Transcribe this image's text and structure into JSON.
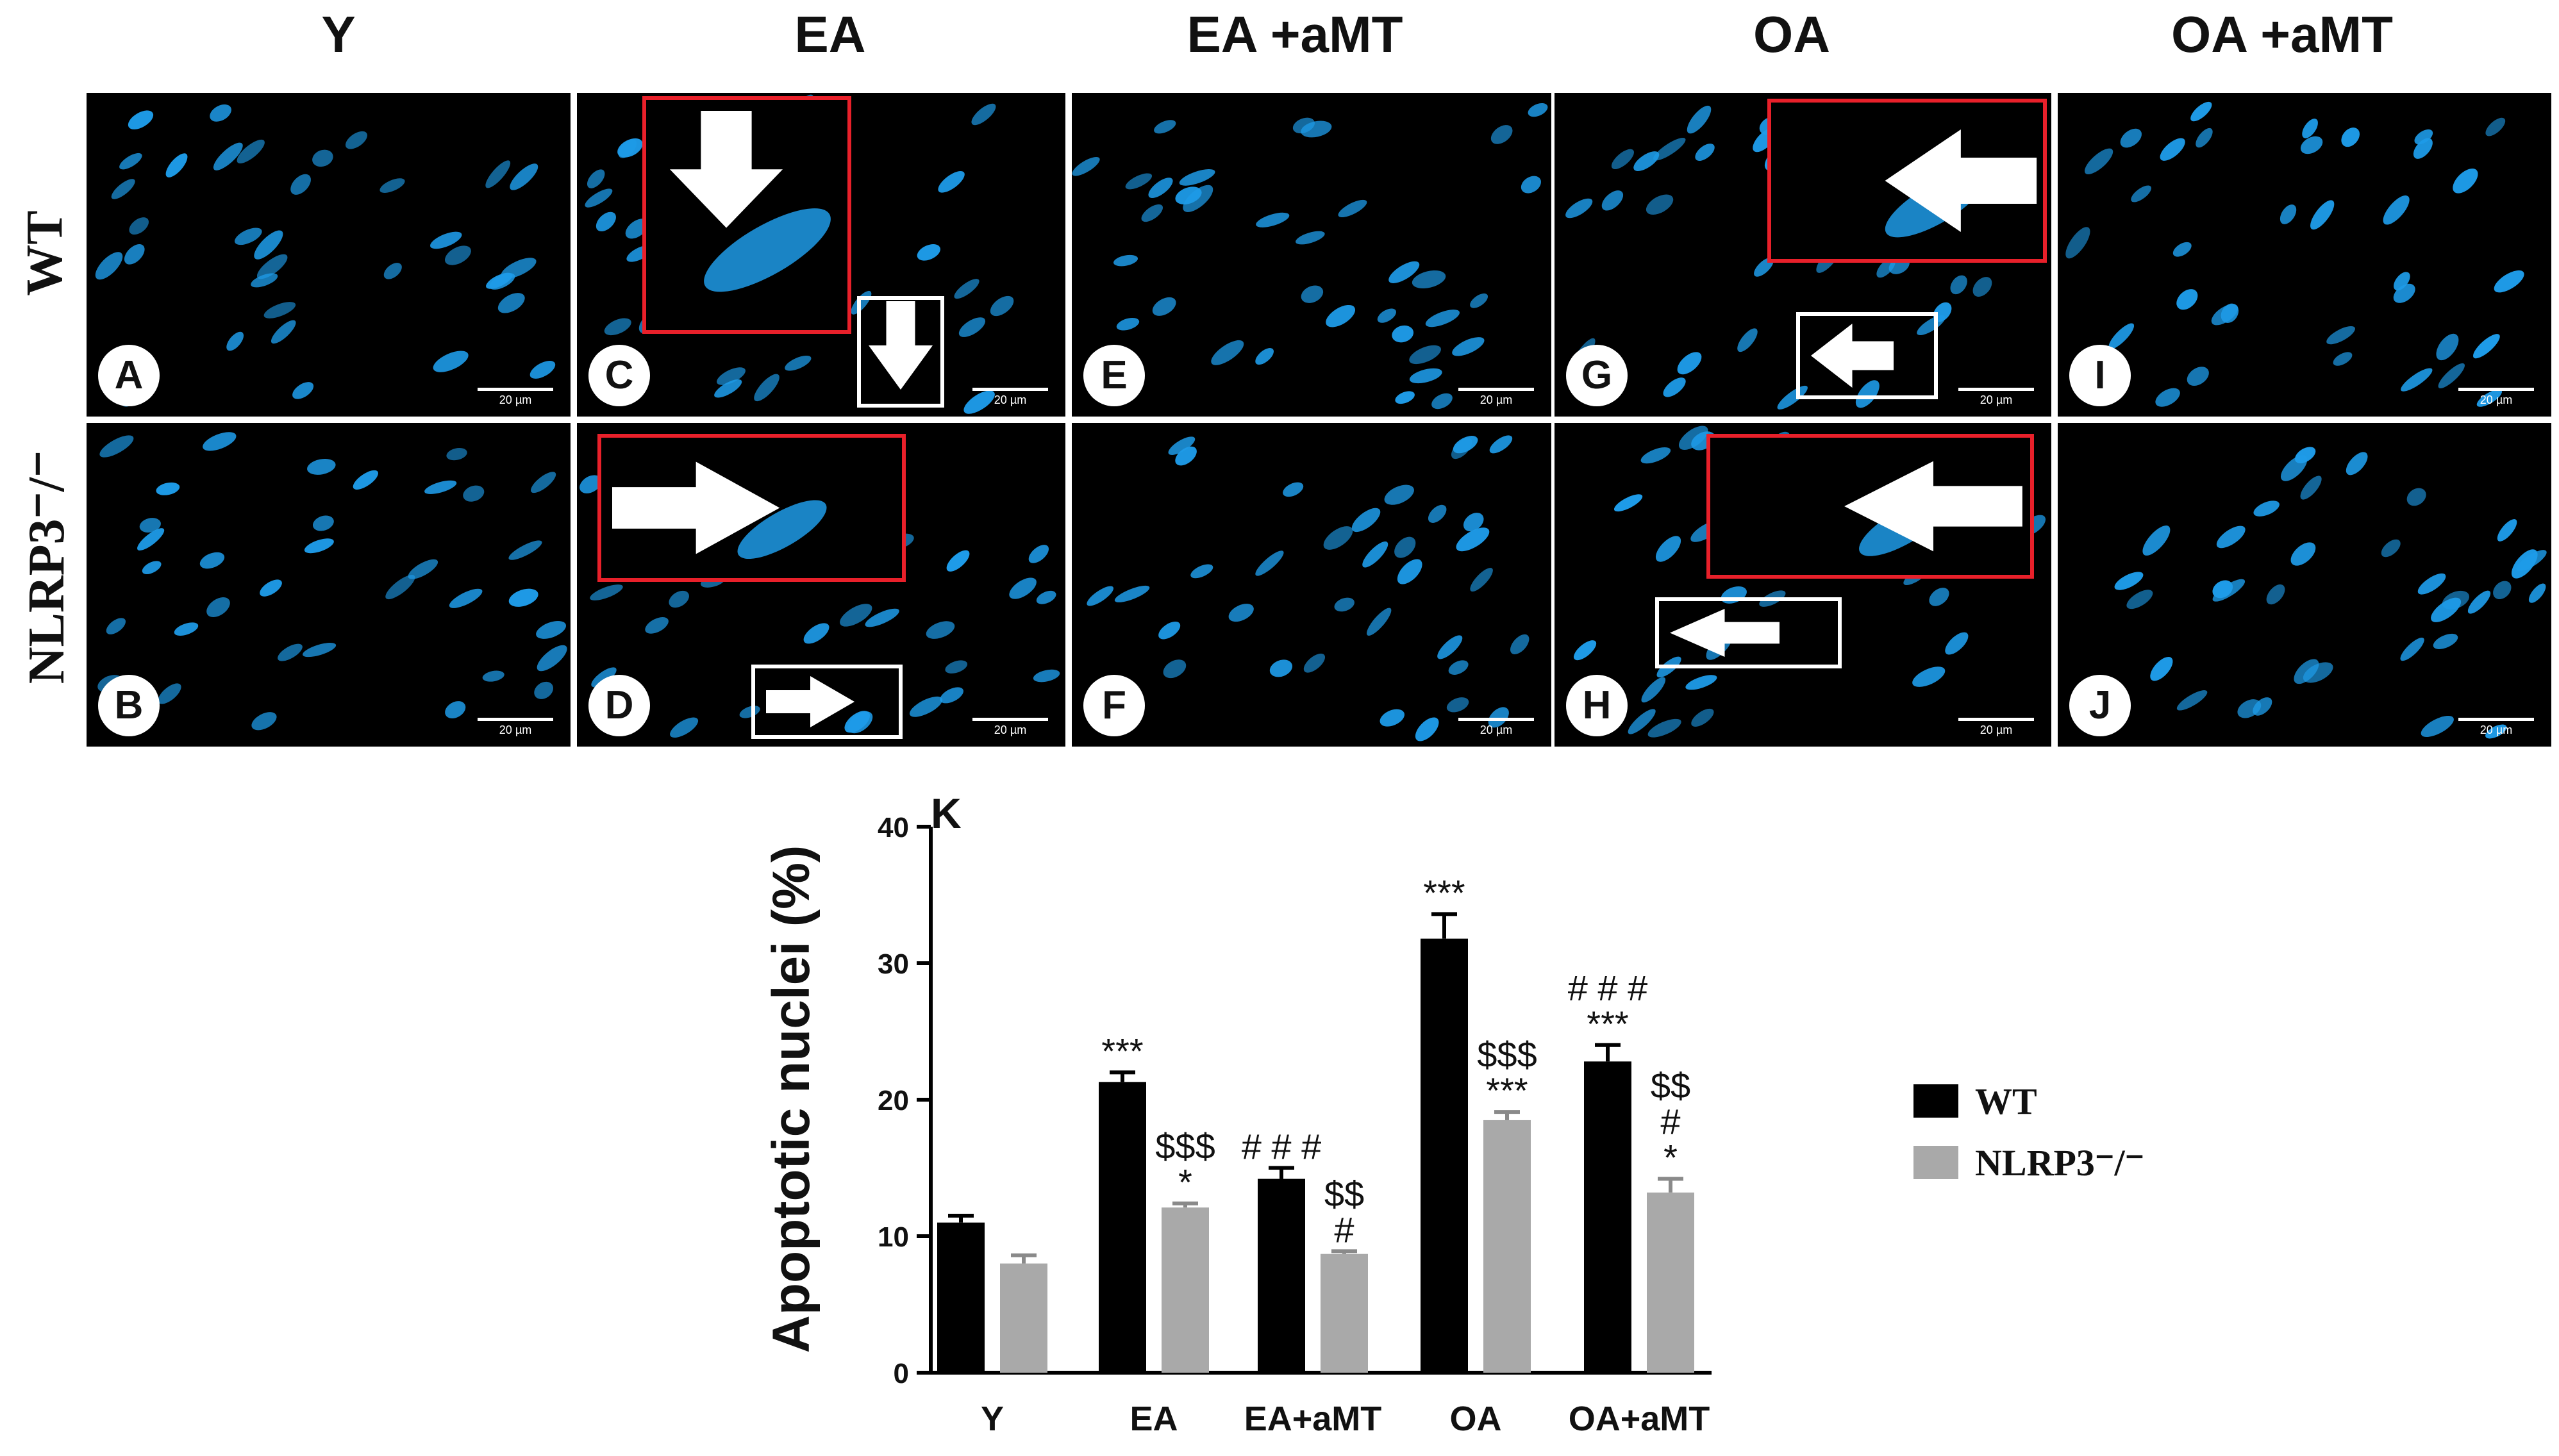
{
  "columns": [
    "Y",
    "EA",
    "EA +aMT",
    "OA",
    "OA +aMT"
  ],
  "rows": [
    "WT",
    "NLRP3⁻/⁻"
  ],
  "panels": [
    {
      "label": "A",
      "scale_text": "20 µm"
    },
    {
      "label": "C",
      "scale_text": "20 µm"
    },
    {
      "label": "E",
      "scale_text": "20 µm"
    },
    {
      "label": "G",
      "scale_text": "20 µm"
    },
    {
      "label": "I",
      "scale_text": "20 µm"
    },
    {
      "label": "B",
      "scale_text": "20 µm"
    },
    {
      "label": "D",
      "scale_text": "20 µm"
    },
    {
      "label": "F",
      "scale_text": "20 µm"
    },
    {
      "label": "H",
      "scale_text": "20 µm"
    },
    {
      "label": "J",
      "scale_text": "20 µm"
    }
  ],
  "colors": {
    "nuclei": "#1e9be8",
    "inset_red": "#e8202a",
    "inset_white": "#ffffff",
    "wt": "#000000",
    "ko": "#a9a9a9"
  },
  "chart_data": {
    "type": "bar",
    "panel_label": "K",
    "ylabel": "Apoptotic nuclei (%)",
    "xlabel": "",
    "categories": [
      "Y",
      "EA",
      "EA+aMT",
      "OA",
      "OA+aMT"
    ],
    "ylim": [
      0,
      40
    ],
    "yticks": [
      0,
      10,
      20,
      30,
      40
    ],
    "grid": false,
    "legend_position": "right",
    "series": [
      {
        "name": "WT",
        "color": "#000000",
        "values": [
          11,
          21.3,
          14.2,
          31.8,
          22.8
        ],
        "errors": [
          0.5,
          0.7,
          0.8,
          1.8,
          1.2
        ],
        "annotations": [
          [],
          [
            "***"
          ],
          [
            "# # #"
          ],
          [
            "***"
          ],
          [
            "# # #",
            "***"
          ]
        ]
      },
      {
        "name": "NLRP3⁻/⁻",
        "color": "#a9a9a9",
        "values": [
          8.0,
          12.1,
          8.7,
          18.5,
          13.2
        ],
        "errors": [
          0.6,
          0.3,
          0.2,
          0.6,
          1.0
        ],
        "annotations": [
          [],
          [
            "$$$",
            "*"
          ],
          [
            "$$",
            "#"
          ],
          [
            "$$$",
            "***"
          ],
          [
            "$$",
            "#",
            "*"
          ]
        ]
      }
    ]
  }
}
